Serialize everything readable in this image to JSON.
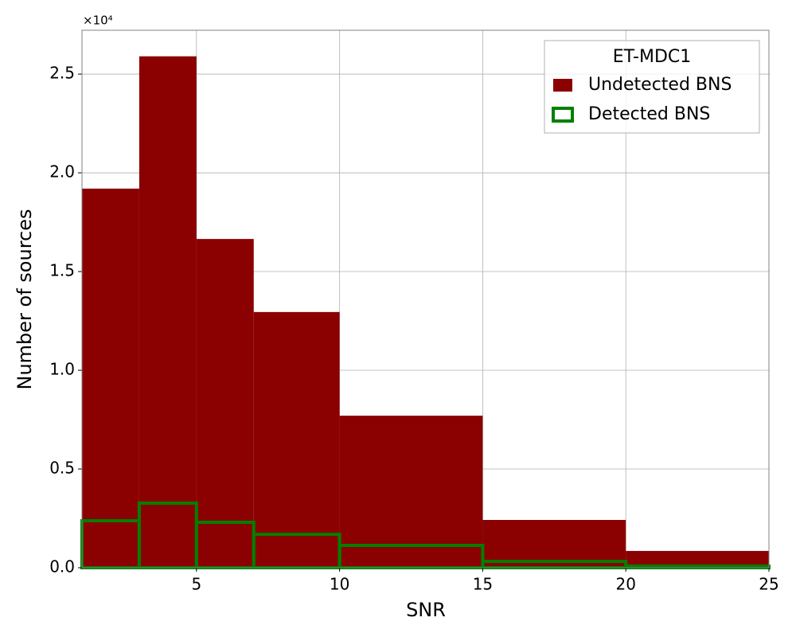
{
  "chart_data": {
    "type": "histogram",
    "x_label": "SNR",
    "y_label": "Number of sources",
    "y_offset_label": "×10⁴",
    "legend_title": "ET-MDC1",
    "legend_position": "upper right",
    "bins": [
      1,
      3,
      5,
      7,
      10,
      15,
      20,
      25
    ],
    "series": [
      {
        "name": "Undetected BNS",
        "color": "#8b0000",
        "style": "filled",
        "values": [
          19200,
          25900,
          16650,
          12950,
          7700,
          2420,
          850
        ]
      },
      {
        "name": "Detected BNS",
        "color": "#008000",
        "style": "step",
        "values": [
          2380,
          3270,
          2300,
          1690,
          1130,
          320,
          80
        ]
      }
    ],
    "xlim": [
      1,
      25
    ],
    "xticks": [
      5,
      10,
      15,
      20,
      25
    ],
    "ylim": [
      0,
      27220
    ],
    "yticks": [
      {
        "value": 0,
        "label": "0.0"
      },
      {
        "value": 5000,
        "label": "0.5"
      },
      {
        "value": 10000,
        "label": "1.0"
      },
      {
        "value": 15000,
        "label": "1.5"
      },
      {
        "value": 20000,
        "label": "2.0"
      },
      {
        "value": 25000,
        "label": "2.5"
      }
    ],
    "grid": true
  }
}
